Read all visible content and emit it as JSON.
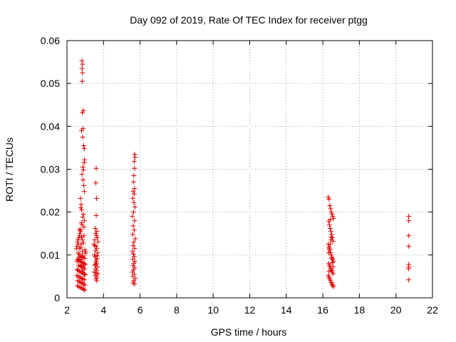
{
  "chart_data": {
    "type": "scatter",
    "title": "Day 092 of 2019, Rate Of TEC Index for receiver ptgg",
    "xlabel": "GPS time / hours",
    "ylabel": "ROTI / TECUs",
    "xlim": [
      2,
      22
    ],
    "ylim": [
      0,
      0.06
    ],
    "xticks": [
      2,
      4,
      6,
      8,
      10,
      12,
      14,
      16,
      18,
      20,
      22
    ],
    "yticks": [
      0,
      0.01,
      0.02,
      0.03,
      0.04,
      0.05,
      0.06
    ],
    "xtick_labels": [
      "2",
      "4",
      "6",
      "8",
      "10",
      "12",
      "14",
      "16",
      "18",
      "20",
      "22"
    ],
    "ytick_labels": [
      "0",
      "0.01",
      "0.02",
      "0.03",
      "0.04",
      "0.05",
      "0.06"
    ],
    "grid": true,
    "legend": "none",
    "marker": "plus",
    "color": "#e00000",
    "series": [
      {
        "x": [
          2.82,
          2.85,
          2.82,
          2.85,
          2.83,
          2.9,
          2.84,
          2.88,
          2.8,
          2.86,
          2.91,
          2.95,
          2.96,
          2.94,
          2.87,
          2.9,
          2.82,
          2.88,
          2.92,
          2.95,
          2.74,
          2.78,
          2.76,
          2.8,
          2.9,
          2.86,
          2.95,
          2.79,
          2.83,
          2.93,
          2.72,
          2.75,
          2.7,
          2.68,
          2.65,
          2.6,
          2.58,
          2.62,
          2.55,
          2.52,
          2.98,
          3.0,
          3.02,
          2.66,
          2.73,
          2.81,
          2.89,
          2.97,
          2.58,
          2.62,
          2.7,
          2.78,
          2.86,
          2.94,
          3.0,
          2.64,
          2.72,
          2.8,
          2.88,
          2.96,
          2.56,
          2.6,
          2.68,
          2.76,
          2.84,
          2.92,
          2.99,
          2.54,
          2.63,
          2.71,
          2.79,
          2.87,
          2.95,
          2.59,
          2.67,
          2.75,
          2.83,
          2.91,
          2.98,
          2.57,
          2.65,
          2.74,
          2.82,
          2.9,
          2.97,
          2.61,
          2.69,
          2.77,
          2.85,
          2.93,
          2.55,
          2.66,
          2.78,
          2.88,
          2.96,
          2.7,
          2.8,
          2.9,
          2.76,
          2.84,
          2.86,
          2.74,
          2.92
        ],
        "y": [
          0.0553,
          0.0545,
          0.0535,
          0.0525,
          0.0505,
          0.0437,
          0.0432,
          0.0395,
          0.039,
          0.0375,
          0.0355,
          0.0348,
          0.0322,
          0.0315,
          0.0305,
          0.0298,
          0.0288,
          0.0275,
          0.0262,
          0.0248,
          0.0232,
          0.0218,
          0.021,
          0.0205,
          0.0195,
          0.0188,
          0.018,
          0.0175,
          0.017,
          0.0165,
          0.016,
          0.0155,
          0.015,
          0.0145,
          0.014,
          0.0135,
          0.013,
          0.0125,
          0.012,
          0.0115,
          0.0112,
          0.0108,
          0.0104,
          0.0101,
          0.0098,
          0.0096,
          0.0094,
          0.0092,
          0.009,
          0.0088,
          0.0086,
          0.0084,
          0.0082,
          0.008,
          0.0078,
          0.0076,
          0.0074,
          0.0072,
          0.007,
          0.0068,
          0.0066,
          0.0064,
          0.0062,
          0.006,
          0.0058,
          0.0056,
          0.0054,
          0.0052,
          0.005,
          0.0048,
          0.0046,
          0.0044,
          0.0042,
          0.004,
          0.0038,
          0.0036,
          0.0034,
          0.0032,
          0.003,
          0.0028,
          0.0026,
          0.0024,
          0.0022,
          0.002,
          0.0018,
          0.0105,
          0.0115,
          0.0125,
          0.0135,
          0.0145,
          0.0085,
          0.0095,
          0.0075,
          0.0065,
          0.0055,
          0.0158,
          0.0142,
          0.0128,
          0.0118,
          0.0108,
          0.0098,
          0.0089,
          0.0079
        ]
      },
      {
        "x": [
          3.6,
          3.58,
          3.62,
          3.6,
          3.55,
          3.64,
          3.57,
          3.61,
          3.66,
          3.52,
          3.7,
          3.48,
          3.59,
          3.63,
          3.56,
          3.68,
          3.5,
          3.54,
          3.65,
          3.6,
          3.58,
          3.62,
          3.53,
          3.67,
          3.57,
          3.61,
          3.49,
          3.69,
          3.55,
          3.64,
          3.59,
          3.63,
          3.51,
          3.66,
          3.56,
          3.6
        ],
        "y": [
          0.0302,
          0.0268,
          0.0232,
          0.0192,
          0.0162,
          0.0155,
          0.015,
          0.0145,
          0.014,
          0.0135,
          0.013,
          0.0125,
          0.012,
          0.0115,
          0.011,
          0.0105,
          0.01,
          0.0096,
          0.0092,
          0.0088,
          0.0084,
          0.008,
          0.0076,
          0.0072,
          0.0068,
          0.0064,
          0.006,
          0.0056,
          0.0052,
          0.0048,
          0.0044,
          0.004,
          0.0122,
          0.0098,
          0.0078,
          0.0058
        ]
      },
      {
        "x": [
          5.7,
          5.72,
          5.68,
          5.7,
          5.66,
          5.64,
          5.7,
          5.62,
          5.68,
          5.6,
          5.66,
          5.72,
          5.64,
          5.58,
          5.7,
          5.62,
          5.68,
          5.6,
          5.74,
          5.66,
          5.62,
          5.7,
          5.58,
          5.64,
          5.68,
          5.6,
          5.72,
          5.66,
          5.62,
          5.7,
          5.64,
          5.58,
          5.68,
          5.6,
          5.74,
          5.66,
          5.62,
          5.7
        ],
        "y": [
          0.0335,
          0.0328,
          0.0318,
          0.0302,
          0.0285,
          0.027,
          0.0255,
          0.0248,
          0.0242,
          0.0232,
          0.0222,
          0.0212,
          0.02,
          0.019,
          0.018,
          0.0168,
          0.0158,
          0.0148,
          0.0138,
          0.013,
          0.0122,
          0.0115,
          0.0108,
          0.0102,
          0.0096,
          0.009,
          0.0085,
          0.008,
          0.0075,
          0.007,
          0.0065,
          0.006,
          0.0055,
          0.005,
          0.0045,
          0.004,
          0.0035,
          0.0032
        ]
      },
      {
        "x": [
          16.3,
          16.34,
          16.38,
          16.42,
          16.46,
          16.5,
          16.54,
          16.58,
          16.32,
          16.36,
          16.4,
          16.44,
          16.48,
          16.52,
          16.56,
          16.3,
          16.34,
          16.38,
          16.42,
          16.46,
          16.5,
          16.54,
          16.58,
          16.32,
          16.36,
          16.4,
          16.44,
          16.48,
          16.52,
          16.56,
          16.3,
          16.34,
          16.38,
          16.42,
          16.46,
          16.5,
          16.54,
          16.58,
          16.32,
          16.36,
          16.4,
          16.44,
          16.48,
          16.52,
          16.56,
          16.4,
          16.46,
          16.34
        ],
        "y": [
          0.0235,
          0.023,
          0.0215,
          0.0208,
          0.02,
          0.0195,
          0.019,
          0.0185,
          0.0178,
          0.017,
          0.0162,
          0.0155,
          0.0148,
          0.014,
          0.0132,
          0.0125,
          0.0118,
          0.0112,
          0.0106,
          0.01,
          0.0095,
          0.009,
          0.0085,
          0.008,
          0.0076,
          0.0072,
          0.0068,
          0.0064,
          0.006,
          0.0056,
          0.0052,
          0.0048,
          0.0044,
          0.004,
          0.0036,
          0.0032,
          0.0029,
          0.0026,
          0.0105,
          0.0115,
          0.0125,
          0.0135,
          0.0092,
          0.0082,
          0.0072,
          0.0182,
          0.0142,
          0.0062
        ]
      },
      {
        "x": [
          20.7,
          20.7,
          20.7,
          20.7,
          20.7,
          20.7,
          20.7,
          20.7
        ],
        "y": [
          0.019,
          0.018,
          0.0145,
          0.012,
          0.0078,
          0.0072,
          0.0068,
          0.0042
        ]
      }
    ]
  }
}
